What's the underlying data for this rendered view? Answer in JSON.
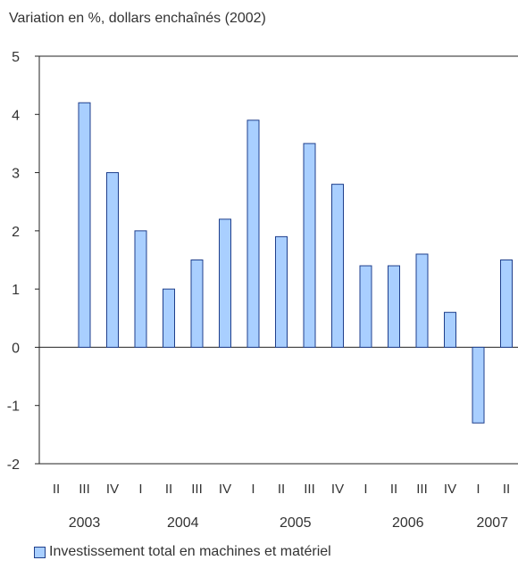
{
  "chart_data": {
    "type": "bar",
    "ylabel": "Variation en %, dollars enchaînés (2002)",
    "ylim": [
      -2,
      5
    ],
    "yticks": [
      5,
      4,
      3,
      2,
      1,
      0,
      -1,
      -2
    ],
    "categories": [
      "II",
      "III",
      "IV",
      "I",
      "II",
      "III",
      "IV",
      "I",
      "II",
      "III",
      "IV",
      "I",
      "II",
      "III",
      "IV",
      "I",
      "II"
    ],
    "years": [
      {
        "label": "2003",
        "start": 0,
        "end": 2
      },
      {
        "label": "2004",
        "start": 3,
        "end": 6
      },
      {
        "label": "2005",
        "start": 7,
        "end": 10
      },
      {
        "label": "2006",
        "start": 11,
        "end": 14
      },
      {
        "label": "2007",
        "start": 15,
        "end": 16
      }
    ],
    "series": [
      {
        "name": "Investissement total en machines et matériel",
        "values": [
          null,
          4.2,
          3.0,
          2.0,
          1.0,
          1.5,
          2.2,
          3.9,
          1.9,
          3.5,
          2.8,
          1.4,
          1.4,
          1.6,
          0.6,
          -1.3,
          1.5
        ],
        "color": "#a9cfff",
        "stroke": "#1f3f8c"
      }
    ],
    "grid": false,
    "legend_position": "bottom-left"
  }
}
